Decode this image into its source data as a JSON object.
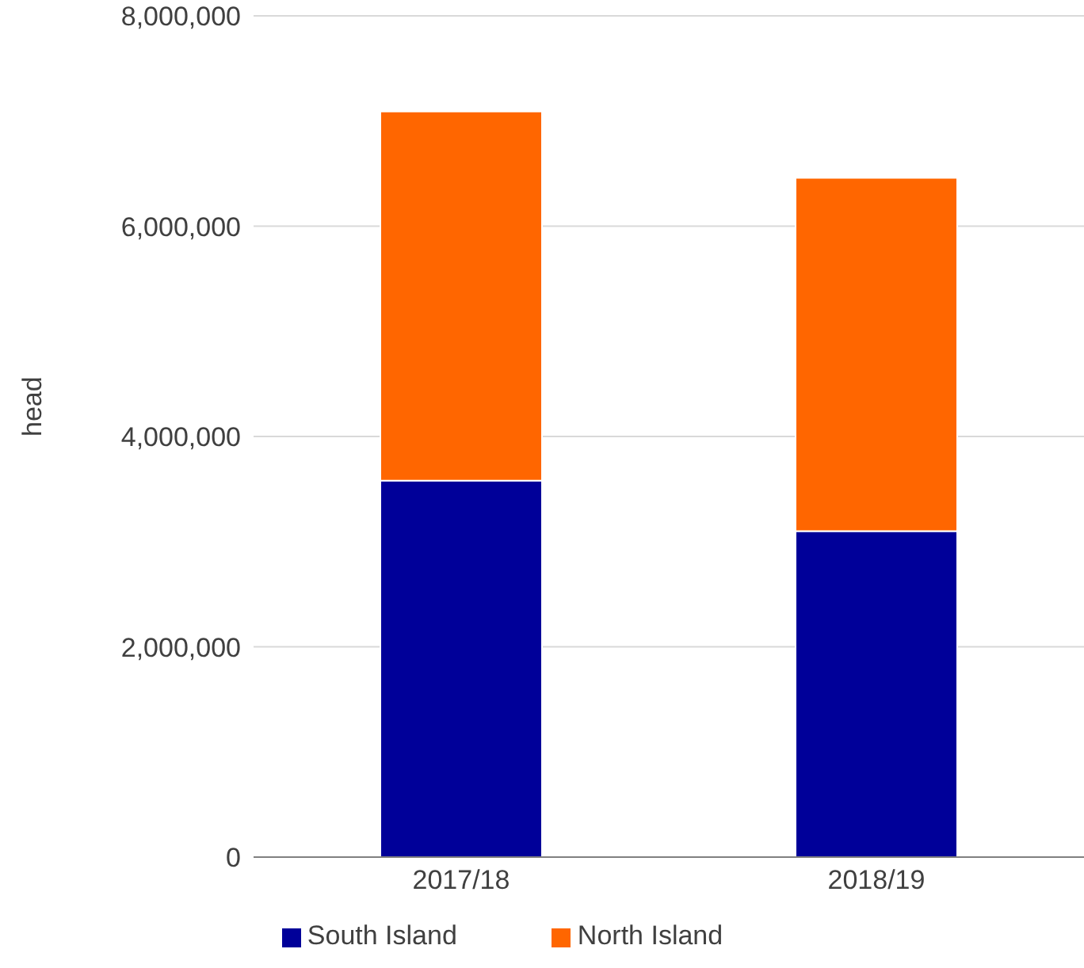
{
  "chart_data": {
    "type": "bar",
    "stacked": true,
    "categories": [
      "2017/18",
      "2018/19"
    ],
    "ylabel": "head",
    "ylim": [
      0,
      8000000
    ],
    "yticks": [
      0,
      {
        "value": 2000000,
        "label": "2,000,000"
      },
      {
        "value": 4000000,
        "label": "4,000,000"
      },
      {
        "value": 6000000,
        "label": "6,000,000"
      },
      {
        "value": 8000000,
        "label": "8,000,000"
      }
    ],
    "grid": "y",
    "legend": "bottom",
    "series": [
      {
        "name": "South Island",
        "color": "#000099",
        "values": [
          3580000,
          3100000
        ]
      },
      {
        "name": "North Island",
        "color": "#ff6600",
        "values": [
          3510000,
          3360000
        ]
      }
    ]
  }
}
